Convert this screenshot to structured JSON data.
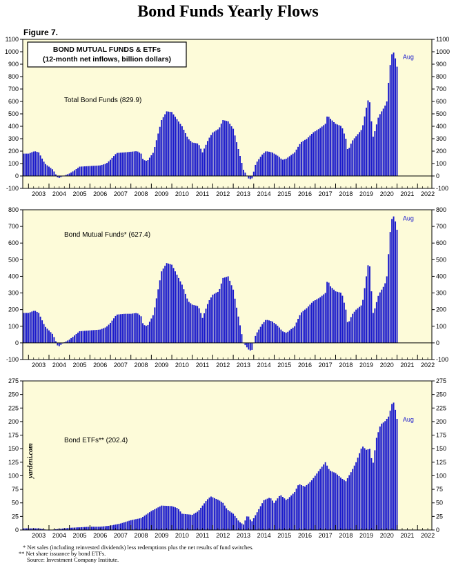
{
  "page": {
    "title": "Bond Funds Yearly Flows",
    "figure_label": "Figure 7.",
    "watermark": "yardeni.com",
    "bar_color": "#1a1acc",
    "panel_bg": "#fdfbd9",
    "footnotes": [
      "* Net sales (including reinvested dividends) less redemptions plus the net results of fund switches.",
      "** Net share issuance by bond ETFs.",
      "Source: Investment Company Institute."
    ]
  },
  "chart_data": [
    {
      "type": "bar",
      "title": "BOND MUTUAL FUNDS & ETFs",
      "subtitle": "(12-month net inflows, billion dollars)",
      "series_label": "Total Bond Funds (829.9)",
      "end_label": "Aug",
      "ylim": [
        -100,
        1100
      ],
      "yticks": [
        -100,
        0,
        100,
        200,
        300,
        400,
        500,
        600,
        700,
        800,
        900,
        1000,
        1100
      ],
      "x_years": [
        "2003",
        "2004",
        "2005",
        "2006",
        "2007",
        "2008",
        "2009",
        "2010",
        "2011",
        "2012",
        "2013",
        "2014",
        "2015",
        "2016",
        "2017",
        "2018",
        "2019",
        "2020",
        "2021",
        "2022"
      ],
      "keypoints": [
        [
          2003.0,
          180
        ],
        [
          2003.3,
          200
        ],
        [
          2003.5,
          190
        ],
        [
          2003.8,
          100
        ],
        [
          2004.2,
          50
        ],
        [
          2004.45,
          -20
        ],
        [
          2004.7,
          0
        ],
        [
          2005.0,
          20
        ],
        [
          2005.2,
          40
        ],
        [
          2005.5,
          75
        ],
        [
          2006.0,
          80
        ],
        [
          2006.5,
          85
        ],
        [
          2006.8,
          100
        ],
        [
          2007.0,
          130
        ],
        [
          2007.3,
          185
        ],
        [
          2007.7,
          190
        ],
        [
          2008.0,
          195
        ],
        [
          2008.3,
          200
        ],
        [
          2008.5,
          180
        ],
        [
          2008.6,
          130
        ],
        [
          2008.8,
          120
        ],
        [
          2009.1,
          190
        ],
        [
          2009.5,
          450
        ],
        [
          2009.75,
          520
        ],
        [
          2010.0,
          515
        ],
        [
          2010.5,
          400
        ],
        [
          2010.8,
          300
        ],
        [
          2011.0,
          270
        ],
        [
          2011.3,
          260
        ],
        [
          2011.5,
          190
        ],
        [
          2011.8,
          300
        ],
        [
          2012.0,
          350
        ],
        [
          2012.3,
          380
        ],
        [
          2012.5,
          450
        ],
        [
          2012.75,
          440
        ],
        [
          2013.0,
          380
        ],
        [
          2013.2,
          250
        ],
        [
          2013.5,
          50
        ],
        [
          2013.75,
          -20
        ],
        [
          2013.9,
          -30
        ],
        [
          2014.1,
          100
        ],
        [
          2014.4,
          170
        ],
        [
          2014.6,
          200
        ],
        [
          2014.9,
          190
        ],
        [
          2015.2,
          160
        ],
        [
          2015.4,
          130
        ],
        [
          2015.6,
          140
        ],
        [
          2016.0,
          190
        ],
        [
          2016.3,
          270
        ],
        [
          2016.6,
          300
        ],
        [
          2016.9,
          350
        ],
        [
          2017.2,
          380
        ],
        [
          2017.5,
          420
        ],
        [
          2017.6,
          490
        ],
        [
          2017.75,
          460
        ],
        [
          2018.0,
          420
        ],
        [
          2018.3,
          400
        ],
        [
          2018.5,
          300
        ],
        [
          2018.6,
          200
        ],
        [
          2018.8,
          280
        ],
        [
          2019.0,
          320
        ],
        [
          2019.3,
          380
        ],
        [
          2019.5,
          550
        ],
        [
          2019.6,
          620
        ],
        [
          2019.7,
          580
        ],
        [
          2019.8,
          300
        ],
        [
          2019.9,
          350
        ],
        [
          2020.1,
          480
        ],
        [
          2020.4,
          560
        ],
        [
          2020.5,
          600
        ],
        [
          2020.6,
          780
        ],
        [
          2020.7,
          950
        ],
        [
          2020.8,
          1010
        ],
        [
          2020.9,
          960
        ],
        [
          2021.0,
          880
        ],
        [
          2021.08,
          829.9
        ]
      ]
    },
    {
      "type": "bar",
      "series_label": "Bond Mutual Funds* (627.4)",
      "end_label": "Aug",
      "ylim": [
        -100,
        800
      ],
      "yticks": [
        -100,
        0,
        100,
        200,
        300,
        400,
        500,
        600,
        700,
        800
      ],
      "x_years": [
        "2003",
        "2004",
        "2005",
        "2006",
        "2007",
        "2008",
        "2009",
        "2010",
        "2011",
        "2012",
        "2013",
        "2014",
        "2015",
        "2016",
        "2017",
        "2018",
        "2019",
        "2020",
        "2021",
        "2022"
      ],
      "keypoints": [
        [
          2003.0,
          180
        ],
        [
          2003.3,
          195
        ],
        [
          2003.5,
          180
        ],
        [
          2003.8,
          100
        ],
        [
          2004.2,
          50
        ],
        [
          2004.45,
          -25
        ],
        [
          2004.7,
          0
        ],
        [
          2005.0,
          20
        ],
        [
          2005.2,
          40
        ],
        [
          2005.5,
          70
        ],
        [
          2006.0,
          75
        ],
        [
          2006.5,
          80
        ],
        [
          2006.8,
          95
        ],
        [
          2007.0,
          120
        ],
        [
          2007.3,
          170
        ],
        [
          2007.7,
          175
        ],
        [
          2008.0,
          175
        ],
        [
          2008.3,
          180
        ],
        [
          2008.5,
          160
        ],
        [
          2008.6,
          110
        ],
        [
          2008.8,
          100
        ],
        [
          2009.1,
          170
        ],
        [
          2009.5,
          430
        ],
        [
          2009.75,
          480
        ],
        [
          2010.0,
          470
        ],
        [
          2010.5,
          350
        ],
        [
          2010.8,
          250
        ],
        [
          2011.0,
          230
        ],
        [
          2011.3,
          220
        ],
        [
          2011.5,
          150
        ],
        [
          2011.8,
          250
        ],
        [
          2012.0,
          290
        ],
        [
          2012.3,
          310
        ],
        [
          2012.5,
          390
        ],
        [
          2012.75,
          400
        ],
        [
          2013.0,
          320
        ],
        [
          2013.2,
          190
        ],
        [
          2013.5,
          0
        ],
        [
          2013.75,
          -40
        ],
        [
          2013.9,
          -50
        ],
        [
          2014.1,
          50
        ],
        [
          2014.4,
          110
        ],
        [
          2014.6,
          140
        ],
        [
          2014.9,
          130
        ],
        [
          2015.2,
          100
        ],
        [
          2015.4,
          70
        ],
        [
          2015.6,
          60
        ],
        [
          2016.0,
          100
        ],
        [
          2016.3,
          180
        ],
        [
          2016.6,
          210
        ],
        [
          2016.9,
          250
        ],
        [
          2017.2,
          270
        ],
        [
          2017.5,
          300
        ],
        [
          2017.6,
          380
        ],
        [
          2017.75,
          340
        ],
        [
          2018.0,
          310
        ],
        [
          2018.3,
          300
        ],
        [
          2018.5,
          200
        ],
        [
          2018.6,
          110
        ],
        [
          2018.8,
          170
        ],
        [
          2019.0,
          200
        ],
        [
          2019.3,
          230
        ],
        [
          2019.5,
          400
        ],
        [
          2019.6,
          480
        ],
        [
          2019.7,
          450
        ],
        [
          2019.8,
          170
        ],
        [
          2019.9,
          200
        ],
        [
          2020.1,
          290
        ],
        [
          2020.4,
          350
        ],
        [
          2020.5,
          400
        ],
        [
          2020.6,
          560
        ],
        [
          2020.7,
          720
        ],
        [
          2020.8,
          770
        ],
        [
          2020.9,
          740
        ],
        [
          2021.0,
          680
        ],
        [
          2021.08,
          627.4
        ]
      ]
    },
    {
      "type": "bar",
      "series_label": "Bond ETFs** (202.4)",
      "end_label": "Aug",
      "ylim": [
        0,
        275
      ],
      "yticks": [
        0,
        25,
        50,
        75,
        100,
        125,
        150,
        175,
        200,
        225,
        250,
        275
      ],
      "x_years": [
        "2003",
        "2004",
        "2005",
        "2006",
        "2007",
        "2008",
        "2009",
        "2010",
        "2011",
        "2012",
        "2013",
        "2014",
        "2015",
        "2016",
        "2017",
        "2018",
        "2019",
        "2020",
        "2021",
        "2022"
      ],
      "keypoints": [
        [
          2003.0,
          3
        ],
        [
          2003.5,
          3
        ],
        [
          2003.8,
          1
        ],
        [
          2004.0,
          0
        ],
        [
          2004.5,
          2
        ],
        [
          2005.0,
          4
        ],
        [
          2005.5,
          5
        ],
        [
          2006.0,
          6
        ],
        [
          2006.5,
          6
        ],
        [
          2007.0,
          8
        ],
        [
          2007.5,
          12
        ],
        [
          2008.0,
          18
        ],
        [
          2008.5,
          22
        ],
        [
          2009.0,
          35
        ],
        [
          2009.5,
          45
        ],
        [
          2010.0,
          44
        ],
        [
          2010.3,
          40
        ],
        [
          2010.5,
          30
        ],
        [
          2011.0,
          28
        ],
        [
          2011.3,
          35
        ],
        [
          2011.7,
          55
        ],
        [
          2011.9,
          62
        ],
        [
          2012.3,
          55
        ],
        [
          2012.5,
          50
        ],
        [
          2012.7,
          38
        ],
        [
          2013.0,
          30
        ],
        [
          2013.3,
          15
        ],
        [
          2013.5,
          10
        ],
        [
          2013.7,
          28
        ],
        [
          2013.9,
          15
        ],
        [
          2014.2,
          35
        ],
        [
          2014.5,
          55
        ],
        [
          2014.8,
          60
        ],
        [
          2015.0,
          50
        ],
        [
          2015.3,
          65
        ],
        [
          2015.6,
          55
        ],
        [
          2016.0,
          70
        ],
        [
          2016.2,
          85
        ],
        [
          2016.5,
          80
        ],
        [
          2016.8,
          90
        ],
        [
          2017.0,
          100
        ],
        [
          2017.3,
          115
        ],
        [
          2017.5,
          125
        ],
        [
          2017.7,
          110
        ],
        [
          2018.0,
          105
        ],
        [
          2018.3,
          95
        ],
        [
          2018.5,
          90
        ],
        [
          2018.8,
          110
        ],
        [
          2019.0,
          125
        ],
        [
          2019.3,
          155
        ],
        [
          2019.5,
          148
        ],
        [
          2019.7,
          150
        ],
        [
          2019.8,
          115
        ],
        [
          2020.0,
          170
        ],
        [
          2020.2,
          195
        ],
        [
          2020.4,
          200
        ],
        [
          2020.6,
          210
        ],
        [
          2020.8,
          240
        ],
        [
          2020.9,
          225
        ],
        [
          2021.0,
          205
        ],
        [
          2021.08,
          202.4
        ]
      ]
    }
  ]
}
